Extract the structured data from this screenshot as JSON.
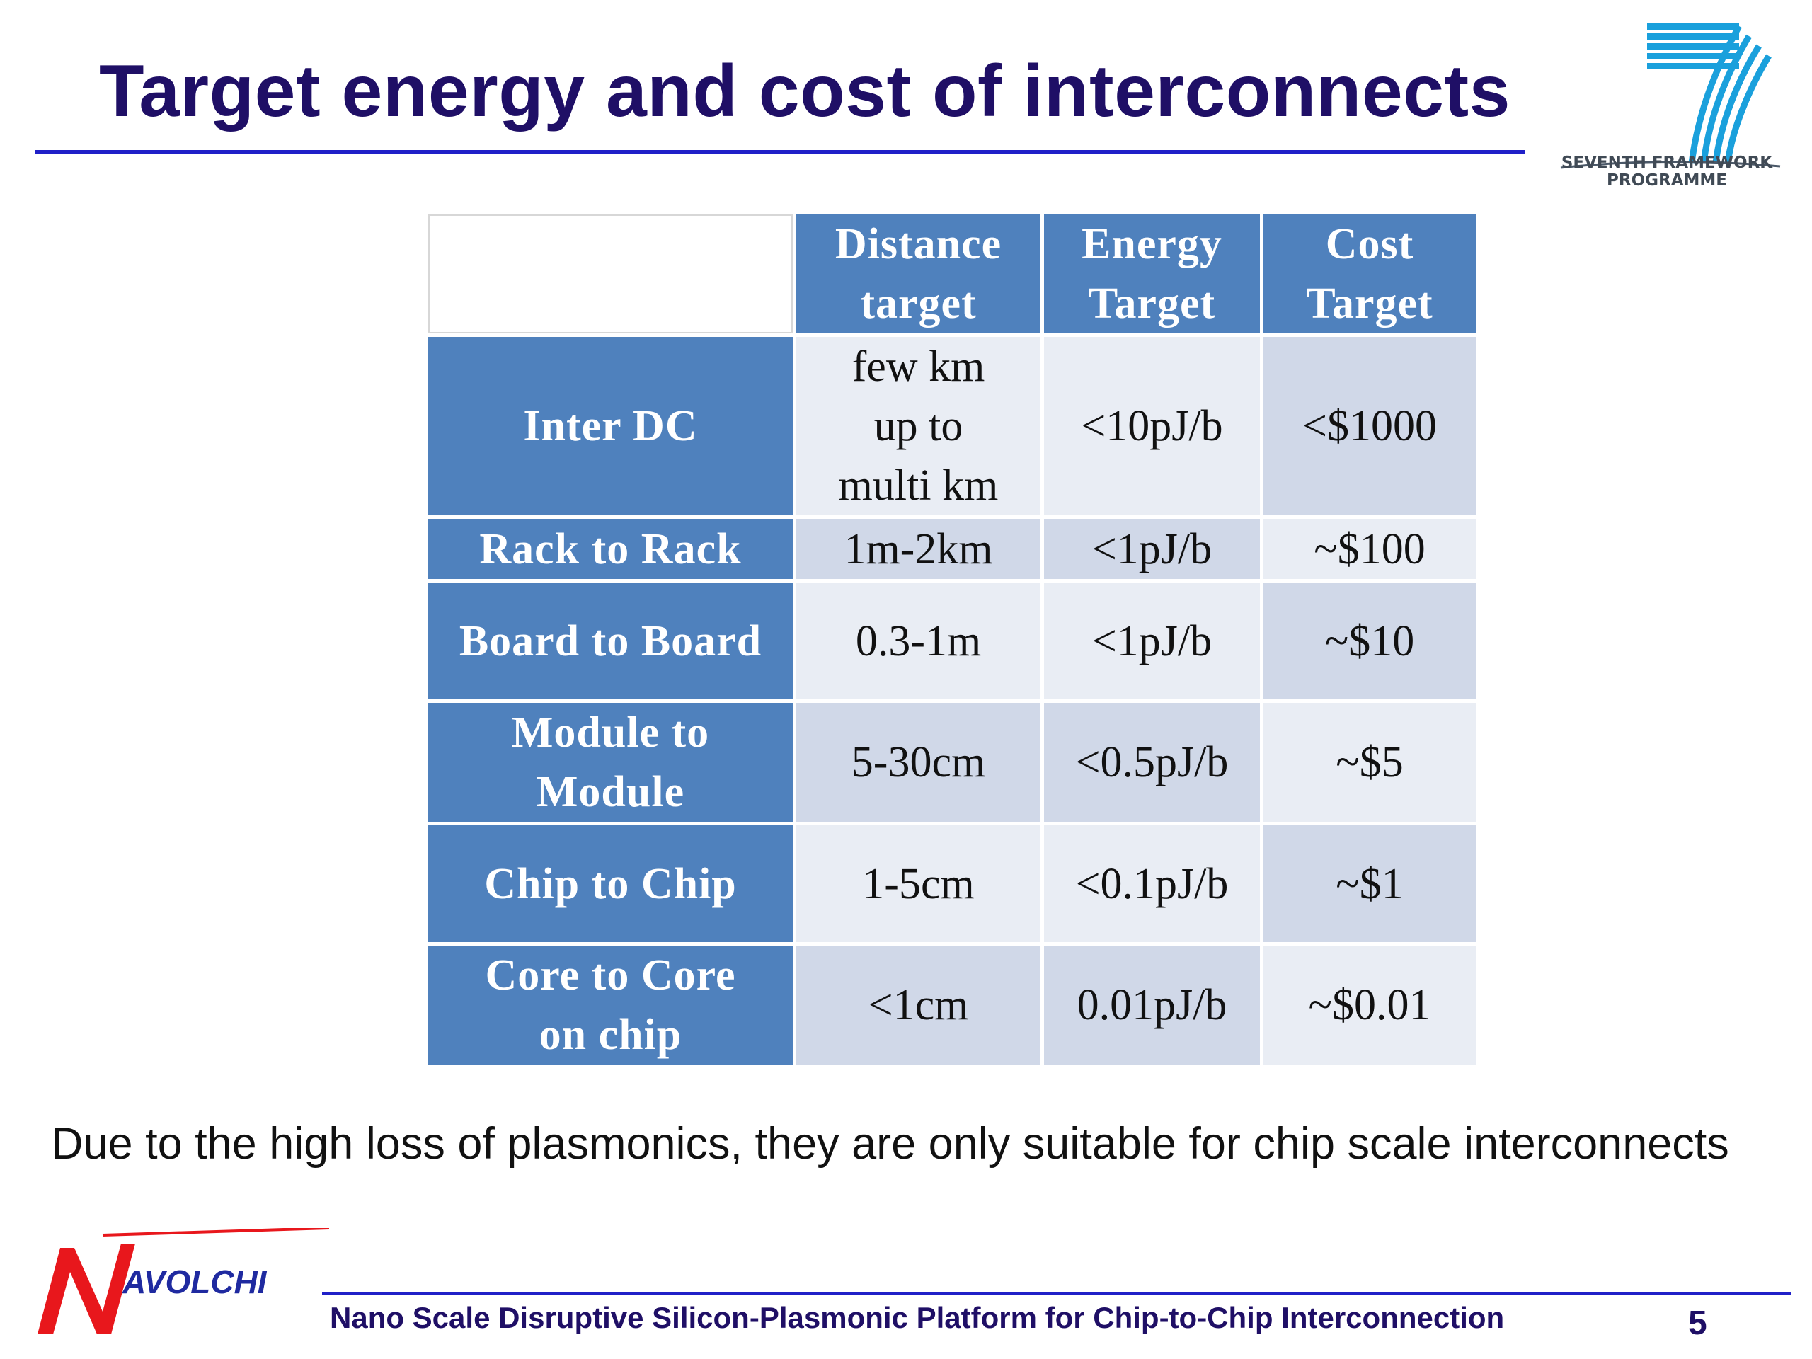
{
  "slide": {
    "title": "Target energy and cost of interconnects",
    "note": "Due to the high loss of plasmonics, they are only suitable for chip scale interconnects",
    "page_number": "5"
  },
  "logo_fp7": {
    "icon": "fp7-seven-logo",
    "line1": "SEVENTH FRAMEWORK",
    "line2": "PROGRAMME"
  },
  "footer": {
    "logo_icon": "navolchi-logo",
    "logo_text": "AVOLCHI",
    "text": "Nano Scale Disruptive Silicon-Plasmonic Platform for Chip-to-Chip Interconnection"
  },
  "table": {
    "headers": [
      {
        "line1": "Distance",
        "line2": "target"
      },
      {
        "line1": "Energy",
        "line2": "Target"
      },
      {
        "line1": "Cost",
        "line2": "Target"
      }
    ],
    "rows": [
      {
        "label": [
          "Inter DC"
        ],
        "distance": [
          "few km",
          "up to",
          "multi km"
        ],
        "energy": "<10pJ/b",
        "cost": "<$1000"
      },
      {
        "label": [
          "Rack to Rack"
        ],
        "distance": [
          "1m-2km"
        ],
        "energy": "<1pJ/b",
        "cost": "~$100"
      },
      {
        "label": [
          "Board to Board"
        ],
        "distance": [
          "0.3-1m"
        ],
        "energy": "<1pJ/b",
        "cost": "~$10"
      },
      {
        "label": [
          "Module to",
          "Module"
        ],
        "distance": [
          "5-30cm"
        ],
        "energy": "<0.5pJ/b",
        "cost": "~$5"
      },
      {
        "label": [
          "Chip to Chip"
        ],
        "distance": [
          "1-5cm"
        ],
        "energy": "<0.1pJ/b",
        "cost": "~$1"
      },
      {
        "label": [
          "Core to Core",
          "on chip"
        ],
        "distance": [
          "<1cm"
        ],
        "energy": "0.01pJ/b",
        "cost": "~$0.01"
      }
    ]
  }
}
